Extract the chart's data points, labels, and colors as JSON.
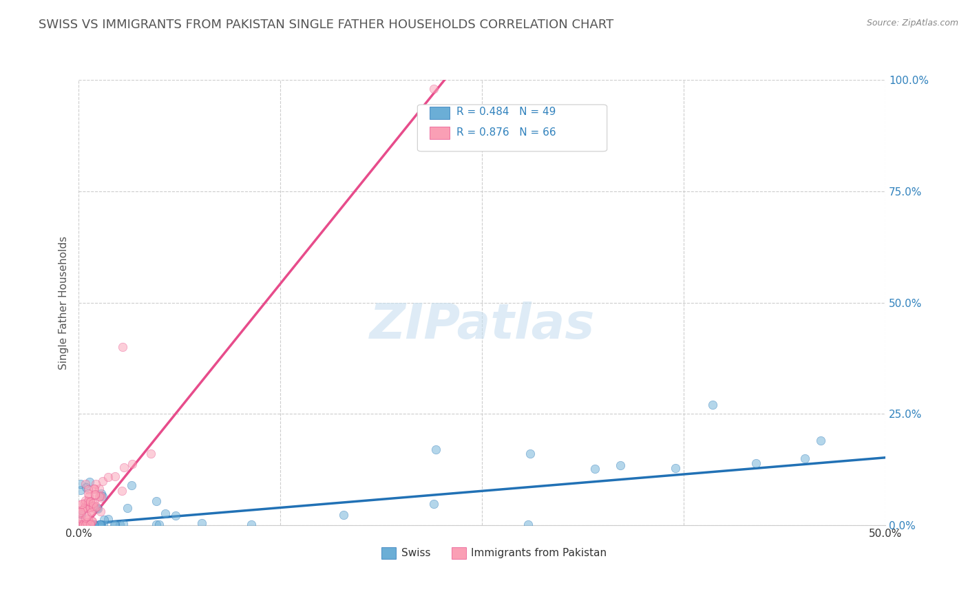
{
  "title": "SWISS VS IMMIGRANTS FROM PAKISTAN SINGLE FATHER HOUSEHOLDS CORRELATION CHART",
  "source_text": "Source: ZipAtlas.com",
  "ylabel": "Single Father Households",
  "watermark": "ZIPatlas",
  "xlim": [
    0,
    0.5
  ],
  "ylim": [
    0,
    1.0
  ],
  "xticks": [
    0.0,
    0.125,
    0.25,
    0.375,
    0.5
  ],
  "yticks": [
    0.0,
    0.25,
    0.5,
    0.75,
    1.0
  ],
  "ytick_labels": [
    "0.0%",
    "25.0%",
    "50.0%",
    "75.0%",
    "100.0%"
  ],
  "xtick_labels": [
    "0.0%",
    "",
    "",
    "",
    "50.0%"
  ],
  "swiss_R": 0.484,
  "swiss_N": 49,
  "pakistan_R": 0.876,
  "pakistan_N": 66,
  "blue_color": "#6baed6",
  "pink_color": "#fa9fb5",
  "blue_line_color": "#2171b5",
  "pink_line_color": "#e74c8b",
  "legend_R_color": "#3182bd",
  "title_color": "#555555",
  "background_color": "#ffffff",
  "grid_color": "#cccccc",
  "swiss_slope": 0.3,
  "swiss_intercept": 0.002,
  "pak_slope": 4.5,
  "pak_intercept": -0.02
}
